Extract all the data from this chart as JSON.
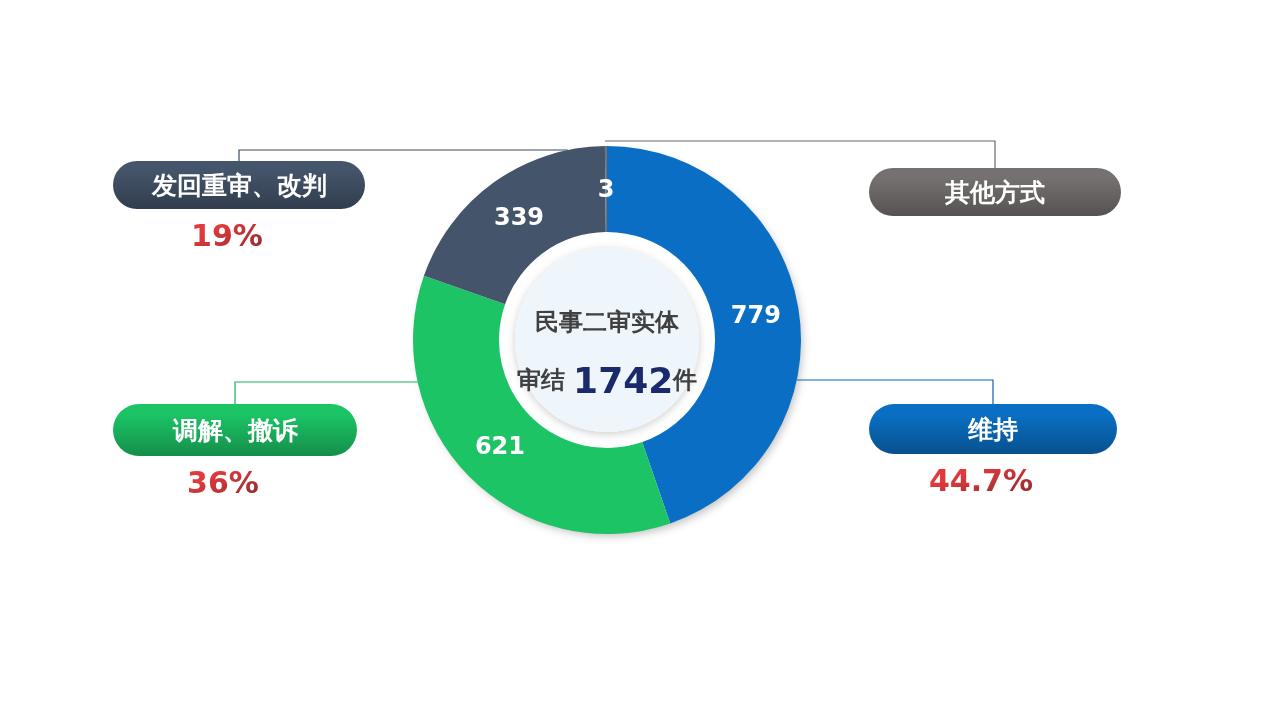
{
  "chart_data": {
    "type": "donut",
    "title": "民事二审实体",
    "subtitle": "审结 1742件",
    "categories": [
      "维持",
      "调解、撤诉",
      "发回重审、改判",
      "其他方式"
    ],
    "values": [
      779,
      621,
      339,
      3
    ],
    "colors": [
      "#0a6fc4",
      "#1cc466",
      "#44546a",
      "#767171"
    ],
    "data_labels": true,
    "annotations": [
      "44.7%",
      "36%",
      "19%"
    ]
  }
}
